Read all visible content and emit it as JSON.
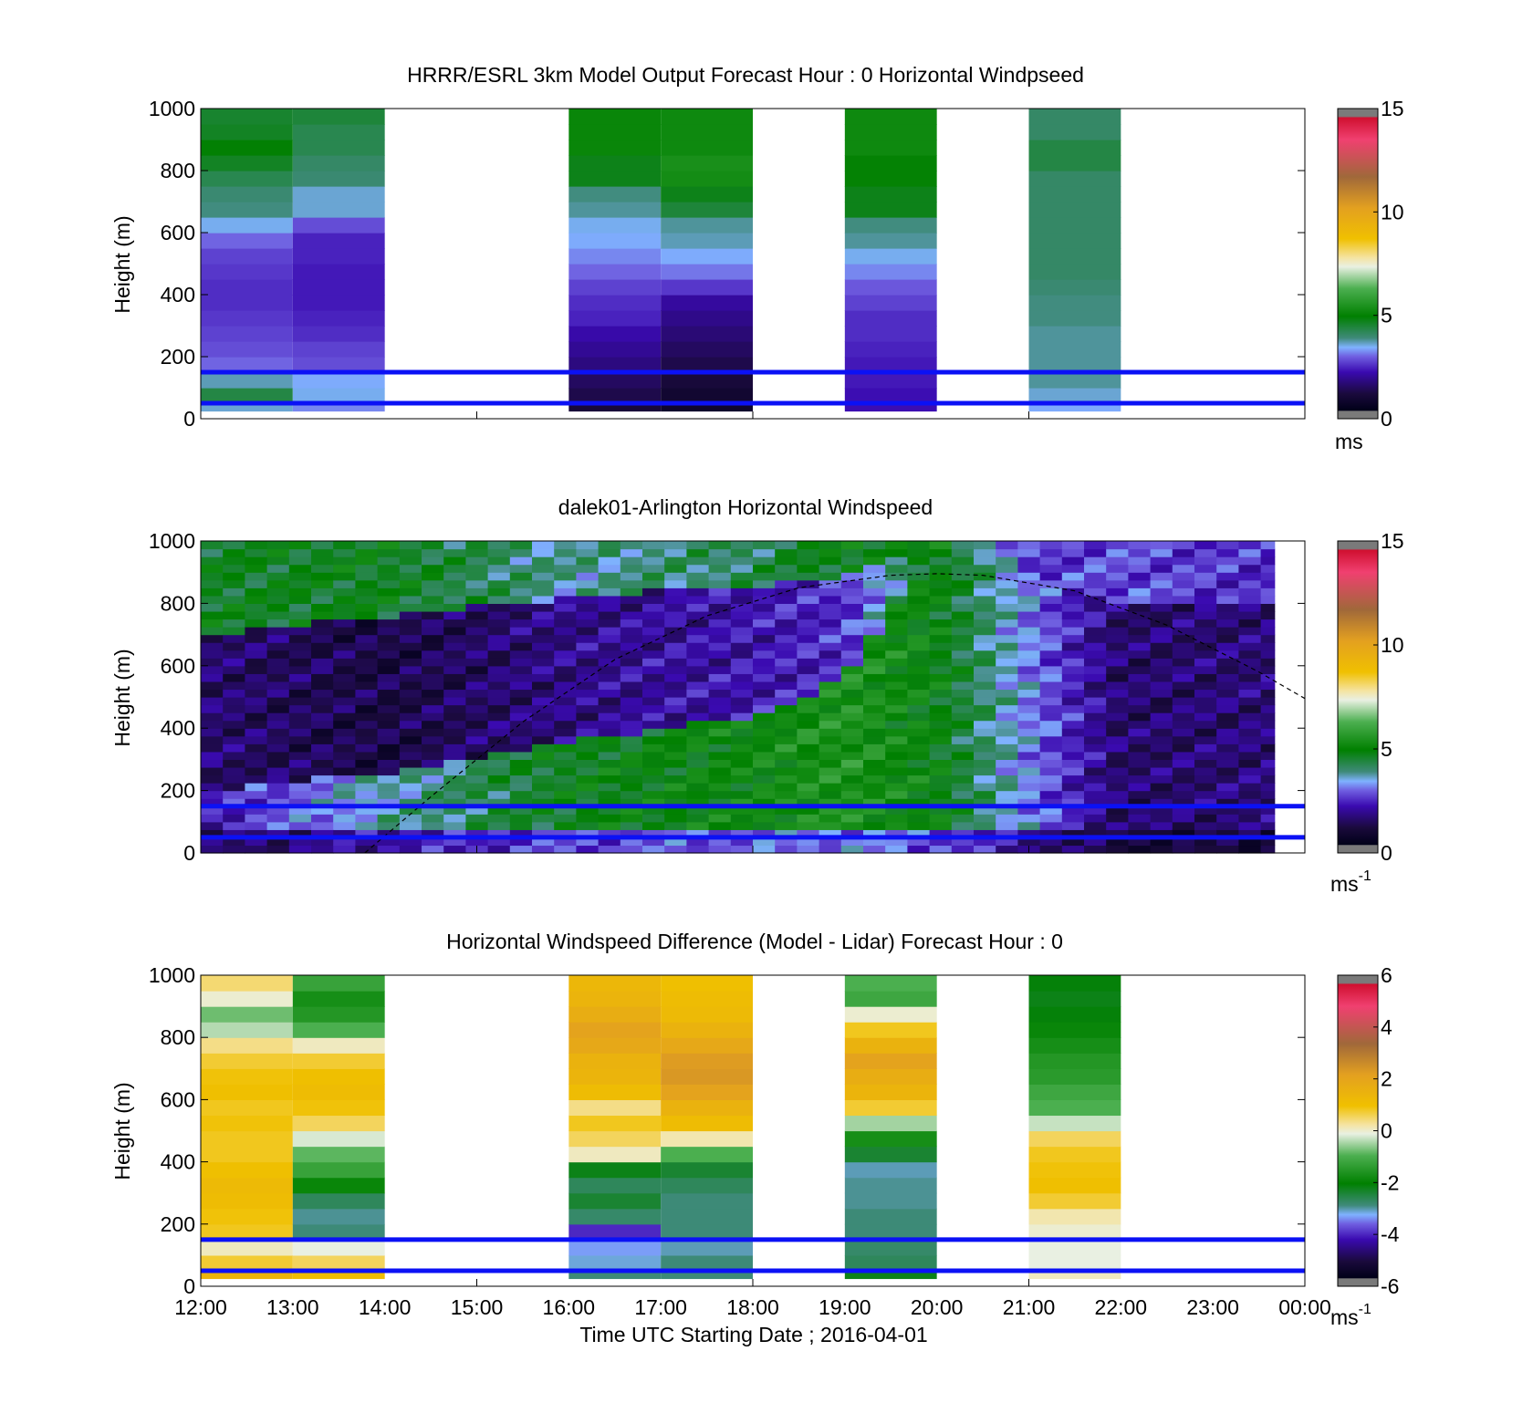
{
  "figure": {
    "time_axis_label": "Time UTC  Starting Date ; 2016-04-01",
    "time_ticks": [
      "12:00",
      "13:00",
      "14:00",
      "15:00",
      "16:00",
      "17:00",
      "18:00",
      "19:00",
      "20:00",
      "21:00",
      "22:00",
      "23:00",
      "00:00"
    ]
  },
  "chart_data": [
    {
      "type": "heatmap",
      "title": "HRRR/ESRL 3km Model Output   Forecast Hour : 0 Horizontal Windpseed",
      "ylabel": "Height (m)",
      "xlabel": "",
      "xlim": [
        "12:00",
        "00:00"
      ],
      "ylim": [
        0,
        1000
      ],
      "yticks": [
        0,
        200,
        400,
        600,
        800,
        1000
      ],
      "reference_lines_m": [
        150,
        50
      ],
      "colorbar": {
        "min": 0,
        "max": 15,
        "ticks": [
          0,
          5,
          10,
          15
        ],
        "unit": "ms"
      },
      "height_levels_m": [
        25,
        75,
        125,
        175,
        225,
        275,
        325,
        375,
        425,
        475,
        525,
        575,
        625,
        675,
        725,
        775,
        825,
        875,
        925,
        975
      ],
      "columns": [
        {
          "start": "12:00",
          "end": "13:00",
          "values_ms": [
            3.4,
            4.2,
            3.5,
            2.8,
            2.6,
            2.5,
            2.4,
            2.3,
            2.3,
            2.4,
            2.5,
            2.8,
            3.3,
            3.7,
            3.8,
            4.1,
            4.5,
            4.8,
            4.5,
            4.4
          ]
        },
        {
          "start": "13:00",
          "end": "14:00",
          "values_ms": [
            3.0,
            3.3,
            3.2,
            2.6,
            2.5,
            2.3,
            2.2,
            2.1,
            2.1,
            2.1,
            2.2,
            2.2,
            2.6,
            3.4,
            3.4,
            3.8,
            3.9,
            4.1,
            4.1,
            4.3
          ]
        },
        {
          "start": "16:00",
          "end": "17:00",
          "values_ms": [
            0.8,
            1.0,
            1.2,
            1.5,
            1.7,
            1.9,
            2.2,
            2.3,
            2.5,
            2.8,
            3.0,
            3.2,
            3.3,
            3.6,
            3.7,
            4.6,
            4.6,
            5.0,
            5.0,
            5.0
          ]
        },
        {
          "start": "17:00",
          "end": "18:00",
          "values_ms": [
            0.5,
            0.6,
            0.8,
            1.0,
            1.2,
            1.4,
            1.6,
            1.8,
            2.4,
            2.9,
            3.2,
            3.5,
            3.6,
            4.3,
            4.6,
            5.2,
            5.3,
            5.1,
            5.1,
            5.1
          ]
        },
        {
          "start": "19:00",
          "end": "20:00",
          "values_ms": [
            2.0,
            2.0,
            2.1,
            2.1,
            2.2,
            2.3,
            2.3,
            2.5,
            2.7,
            3.0,
            3.3,
            3.6,
            3.7,
            4.6,
            4.6,
            4.9,
            4.9,
            5.1,
            5.1,
            5.1
          ]
        },
        {
          "start": "21:00",
          "end": "22:00",
          "values_ms": [
            3.2,
            3.4,
            3.6,
            3.6,
            3.6,
            3.6,
            3.7,
            3.7,
            3.8,
            3.9,
            3.9,
            3.9,
            3.9,
            3.9,
            3.9,
            3.9,
            4.2,
            4.2,
            3.9,
            3.9
          ]
        }
      ]
    },
    {
      "type": "heatmap",
      "title": "dalek01-Arlington  Horizontal Windspeed",
      "ylabel": "Height (m)",
      "xlabel": "",
      "xlim": [
        "12:00",
        "00:00"
      ],
      "ylim": [
        0,
        1000
      ],
      "yticks": [
        0,
        200,
        400,
        600,
        800,
        1000
      ],
      "reference_lines_m": [
        150,
        50
      ],
      "colorbar": {
        "min": 0,
        "max": 15,
        "ticks": [
          0,
          5,
          10,
          15
        ],
        "unit": "ms-1"
      },
      "wind_profile_keyframes": [
        {
          "time": "12:00",
          "low_fast_top_m": 200,
          "slow_layer_top_m": 700,
          "low_ms": 2.0,
          "slow_ms": 1.4,
          "top_ms": 4.5
        },
        {
          "time": "14:00",
          "low_fast_top_m": 260,
          "slow_layer_top_m": 760,
          "low_ms": 3.5,
          "slow_ms": 0.9,
          "top_ms": 4.6
        },
        {
          "time": "16:00",
          "low_fast_top_m": 360,
          "slow_layer_top_m": 820,
          "low_ms": 4.6,
          "slow_ms": 1.6,
          "top_ms": 3.6
        },
        {
          "time": "18:00",
          "low_fast_top_m": 440,
          "slow_layer_top_m": 860,
          "low_ms": 5.0,
          "slow_ms": 2.0,
          "top_ms": 4.0
        },
        {
          "time": "19:00",
          "low_fast_top_m": 560,
          "slow_layer_top_m": 880,
          "low_ms": 5.4,
          "slow_ms": 2.3,
          "top_ms": 4.8
        },
        {
          "time": "20:00",
          "low_fast_top_m": 1000,
          "slow_layer_top_m": 1000,
          "low_ms": 4.8,
          "slow_ms": 4.8,
          "top_ms": 5.0
        },
        {
          "time": "21:00",
          "low_fast_top_m": 900,
          "slow_layer_top_m": 1000,
          "low_ms": 3.0,
          "slow_ms": 2.4,
          "top_ms": 5.0
        },
        {
          "time": "22:00",
          "low_fast_top_m": 800,
          "slow_layer_top_m": 1000,
          "low_ms": 1.3,
          "slow_ms": 2.6,
          "top_ms": 4.6
        },
        {
          "time": "00:00",
          "low_fast_top_m": 800,
          "slow_layer_top_m": 1000,
          "low_ms": 1.5,
          "slow_ms": 2.2,
          "top_ms": 3.4
        }
      ],
      "mixing_height_curve": [
        {
          "time": "13:47",
          "height_m": 0
        },
        {
          "time": "14:30",
          "height_m": 180
        },
        {
          "time": "15:30",
          "height_m": 420
        },
        {
          "time": "16:30",
          "height_m": 620
        },
        {
          "time": "17:30",
          "height_m": 760
        },
        {
          "time": "18:30",
          "height_m": 850
        },
        {
          "time": "19:30",
          "height_m": 890
        },
        {
          "time": "20:00",
          "height_m": 895
        },
        {
          "time": "20:30",
          "height_m": 890
        },
        {
          "time": "21:30",
          "height_m": 840
        },
        {
          "time": "22:30",
          "height_m": 730
        },
        {
          "time": "23:30",
          "height_m": 580
        },
        {
          "time": "00:00",
          "height_m": 495
        }
      ]
    },
    {
      "type": "heatmap",
      "title": "Horizontal Windspeed Difference (Model - Lidar) Forecast Hour : 0",
      "ylabel": "Height (m)",
      "xlabel": "Time UTC  Starting Date ; 2016-04-01",
      "xlim": [
        "12:00",
        "00:00"
      ],
      "ylim": [
        0,
        1000
      ],
      "yticks": [
        0,
        200,
        400,
        600,
        800,
        1000
      ],
      "reference_lines_m": [
        150,
        50
      ],
      "colorbar": {
        "min": -6,
        "max": 6,
        "ticks": [
          -6,
          -4,
          -2,
          0,
          2,
          4,
          6
        ],
        "unit": "ms-1"
      },
      "height_levels_m": [
        25,
        75,
        125,
        175,
        225,
        275,
        325,
        375,
        425,
        475,
        525,
        575,
        625,
        675,
        725,
        775,
        825,
        875,
        925,
        975
      ],
      "columns": [
        {
          "start": "12:00",
          "end": "13:00",
          "values_ms": [
            1.5,
            0.8,
            0.1,
            0.9,
            1.0,
            1.2,
            1.3,
            1.1,
            0.9,
            0.9,
            1.0,
            0.9,
            1.1,
            1.0,
            0.8,
            0.4,
            -0.4,
            -0.8,
            0.0,
            0.5
          ]
        },
        {
          "start": "13:00",
          "end": "14:00",
          "values_ms": [
            1.2,
            0.6,
            -0.1,
            -3.0,
            -3.1,
            -2.8,
            -2.0,
            -1.3,
            -0.9,
            -0.2,
            0.6,
            1.0,
            1.2,
            1.1,
            0.8,
            0.1,
            -1.0,
            -1.6,
            -1.8,
            -1.3
          ]
        },
        {
          "start": "16:00",
          "end": "17:00",
          "values_ms": [
            -3.0,
            -3.3,
            -3.5,
            -4.2,
            -2.9,
            -2.5,
            -2.8,
            -2.3,
            0.1,
            0.6,
            0.9,
            0.4,
            1.2,
            1.5,
            1.6,
            2.0,
            2.2,
            1.8,
            1.5,
            1.4
          ]
        },
        {
          "start": "17:00",
          "end": "18:00",
          "values_ms": [
            -3.0,
            -3.0,
            -3.2,
            -3.0,
            -3.0,
            -3.0,
            -2.8,
            -2.5,
            -1.0,
            0.2,
            1.2,
            1.6,
            2.2,
            2.5,
            2.4,
            2.0,
            1.6,
            1.3,
            1.2,
            1.1
          ]
        },
        {
          "start": "19:00",
          "end": "20:00",
          "values_ms": [
            -2.3,
            -2.8,
            -2.9,
            -3.0,
            -3.0,
            -3.1,
            -3.1,
            -3.2,
            -2.5,
            -1.8,
            -0.5,
            0.8,
            1.5,
            1.8,
            2.2,
            1.6,
            0.9,
            0.0,
            -1.2,
            -1.0
          ]
        },
        {
          "start": "21:00",
          "end": "22:00",
          "values_ms": [
            0.1,
            -0.1,
            -0.1,
            0.0,
            0.2,
            0.8,
            1.1,
            1.0,
            0.9,
            0.6,
            -0.3,
            -1.0,
            -1.2,
            -1.5,
            -1.6,
            -1.8,
            -2.0,
            -2.2,
            -2.3,
            -2.2
          ]
        }
      ]
    }
  ]
}
